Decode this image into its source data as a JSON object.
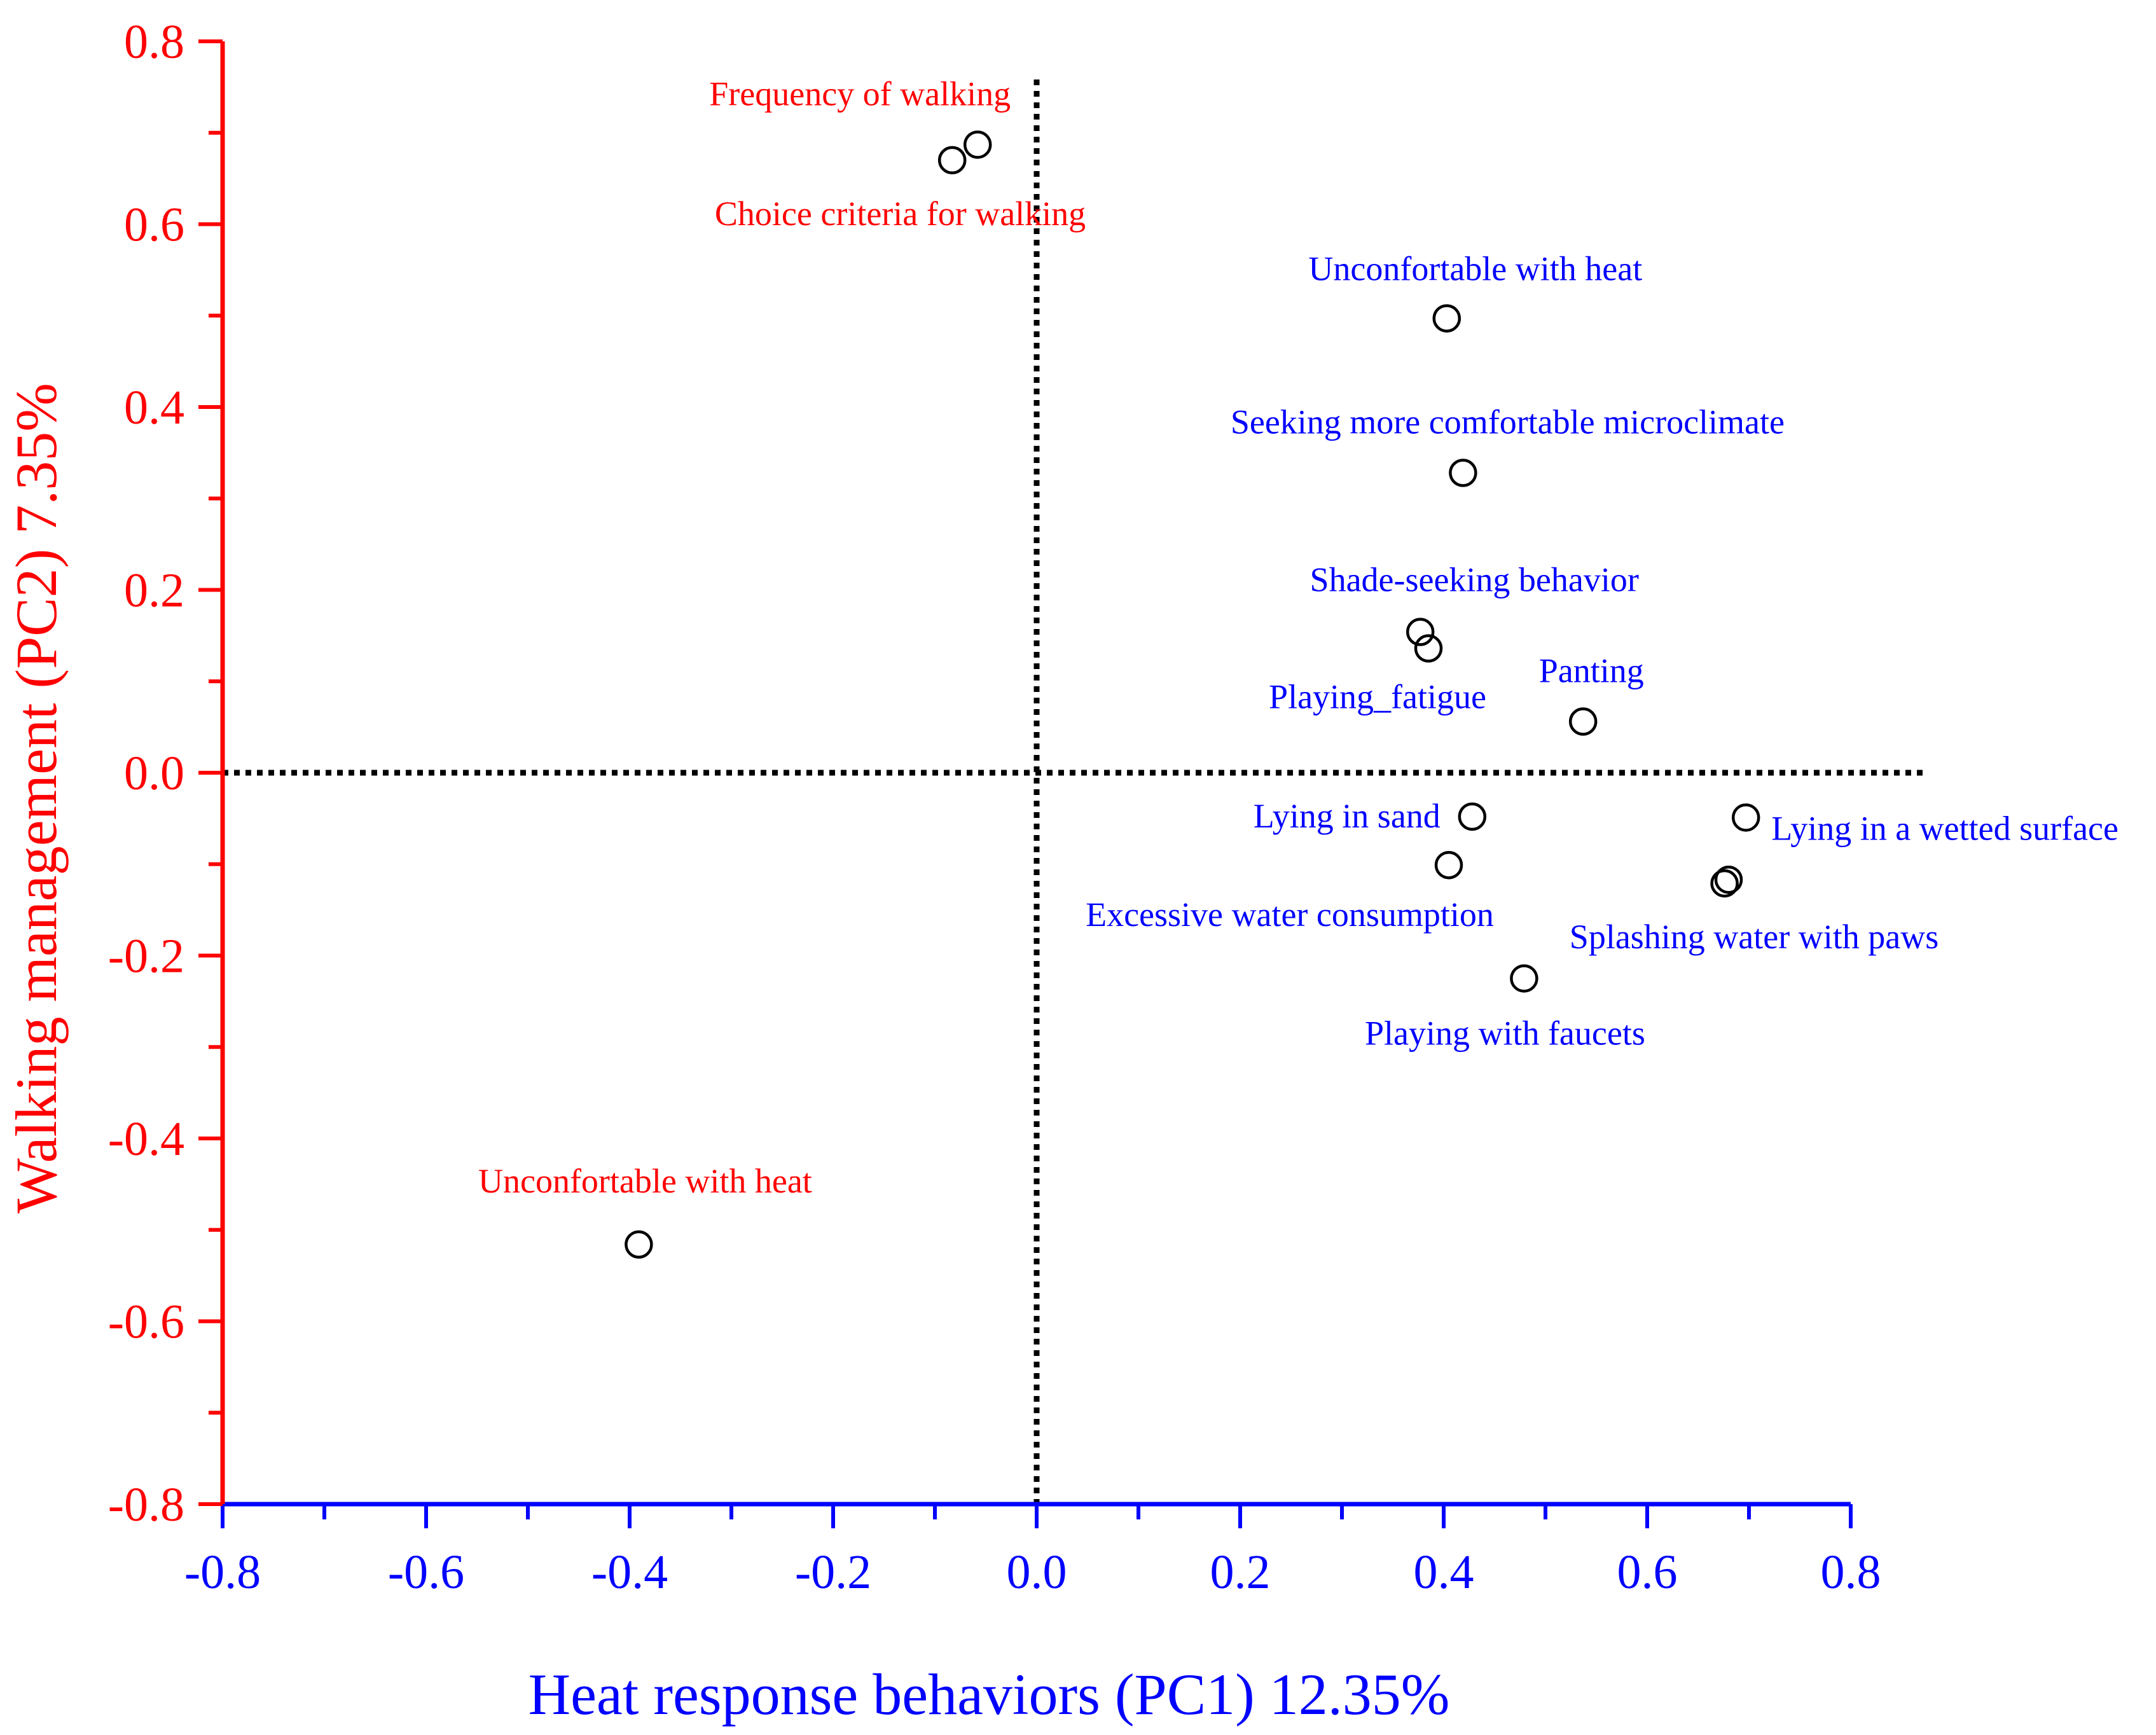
{
  "chart_data": {
    "type": "scatter",
    "xlabel": "Heat response behaviors (PC1) 12.35%",
    "ylabel": "Walking management (PC2) 7.35%",
    "xlim": [
      -0.8,
      0.8
    ],
    "ylim": [
      -0.8,
      0.8
    ],
    "x_ticks": [
      "-0.8",
      "-0.6",
      "-0.4",
      "-0.2",
      "0.0",
      "0.2",
      "0.4",
      "0.6",
      "0.8"
    ],
    "y_ticks": [
      "0.8",
      "0.6",
      "0.4",
      "0.2",
      "0.0",
      "-0.2",
      "-0.4",
      "-0.6",
      "-0.8"
    ],
    "colors": {
      "x_axis": "#0000ff",
      "y_axis": "#ff0000",
      "walking": "#ff0000",
      "heat": "#0000ff",
      "marker": "#000000",
      "reference": "#000000"
    },
    "series": [
      {
        "name": "Walking management",
        "color": "#ff0000",
        "points": [
          {
            "label": "Frequency of walking",
            "x": -0.058,
            "y": 0.687
          },
          {
            "label": "Choice criteria for walking",
            "x": -0.083,
            "y": 0.67
          },
          {
            "label": "Unconfortable with heat",
            "x": -0.391,
            "y": -0.516
          }
        ]
      },
      {
        "name": "Heat response behaviors",
        "color": "#0000ff",
        "points": [
          {
            "label": "Unconfortable with heat",
            "x": 0.403,
            "y": 0.497
          },
          {
            "label": "Seeking more comfortable microclimate",
            "x": 0.419,
            "y": 0.328
          },
          {
            "label": "Shade-seeking behavior",
            "x": 0.377,
            "y": 0.154
          },
          {
            "label": "Playing_fatigue",
            "x": 0.385,
            "y": 0.136
          },
          {
            "label": "Panting",
            "x": 0.537,
            "y": 0.056
          },
          {
            "label": "Lying in sand",
            "x": 0.428,
            "y": -0.048
          },
          {
            "label": "Lying in a wetted surface",
            "x": 0.697,
            "y": -0.049
          },
          {
            "label": "Excessive water consumption",
            "x": 0.405,
            "y": -0.101
          },
          {
            "label": "Splashing water with paws",
            "x": 0.68,
            "y": -0.117
          },
          {
            "label": "",
            "x": 0.676,
            "y": -0.121
          },
          {
            "label": "Playing with faucets",
            "x": 0.479,
            "y": -0.225
          }
        ]
      }
    ]
  }
}
